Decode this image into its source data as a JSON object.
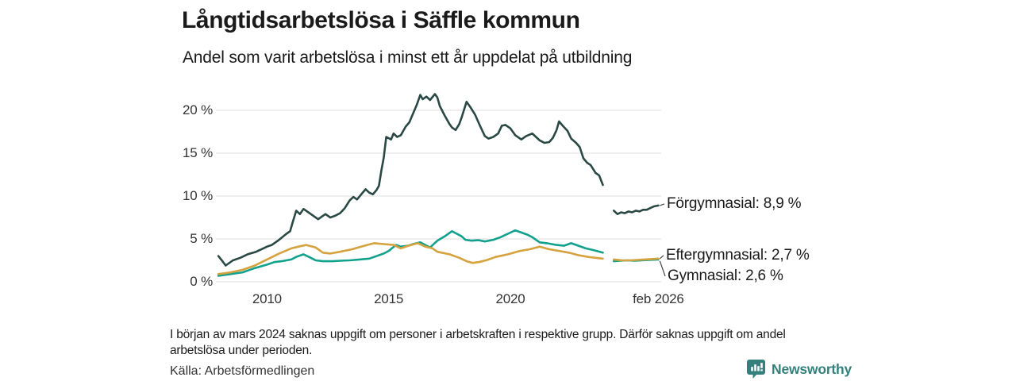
{
  "header": {
    "title": "Långtidsarbetslösa i Säffle kommun",
    "subtitle": "Andel som varit arbetslösa i minst ett år uppdelat på utbildning"
  },
  "footer": {
    "note": "I början av mars 2024 saknas uppgift om personer i arbetskraften i respektive grupp. Därför saknas uppgift om andel arbetslösa under perioden.",
    "source": "Källa: Arbetsförmedlingen",
    "brand": "Newsworthy",
    "brand_color": "#33807c"
  },
  "chart_data": {
    "type": "line",
    "title": "Långtidsarbetslösa i Säffle kommun",
    "subtitle": "Andel som varit arbetslösa i minst ett år uppdelat på utbildning",
    "unit": "%",
    "grid_color": "#dedede",
    "legend_position": "end-of-line-labels",
    "x_axis": {
      "range": [
        2007.9,
        2026.1
      ],
      "ticks": [
        {
          "value": 2010,
          "label": "2010"
        },
        {
          "value": 2015,
          "label": "2015"
        },
        {
          "value": 2020,
          "label": "2020"
        },
        {
          "value": 2026.08,
          "label": "feb 2026"
        }
      ]
    },
    "y_axis": {
      "range": [
        0,
        23
      ],
      "ticks": [
        {
          "value": 0,
          "label": "0 %"
        },
        {
          "value": 5,
          "label": "5 %"
        },
        {
          "value": 10,
          "label": "10 %"
        },
        {
          "value": 15,
          "label": "15 %"
        },
        {
          "value": 20,
          "label": "20 %"
        }
      ]
    },
    "data_gap": {
      "from": 2023.8,
      "to": 2024.25,
      "reason": "Uppgift saknas (se fotnot)"
    },
    "series": [
      {
        "key": "forgymnasial",
        "name": "Förgymnasial",
        "end_label": "Förgymnasial: 8,9 %",
        "end_value": 8.9,
        "color": "#2a4844",
        "points": [
          [
            2008.0,
            3.0
          ],
          [
            2008.17,
            2.4
          ],
          [
            2008.3,
            1.9
          ],
          [
            2008.6,
            2.5
          ],
          [
            2008.9,
            2.8
          ],
          [
            2009.2,
            3.2
          ],
          [
            2009.55,
            3.5
          ],
          [
            2009.85,
            3.9
          ],
          [
            2010.0,
            4.1
          ],
          [
            2010.2,
            4.3
          ],
          [
            2010.45,
            4.8
          ],
          [
            2010.8,
            5.6
          ],
          [
            2010.95,
            5.9
          ],
          [
            2011.05,
            6.9
          ],
          [
            2011.2,
            8.3
          ],
          [
            2011.35,
            7.9
          ],
          [
            2011.5,
            8.5
          ],
          [
            2011.65,
            8.2
          ],
          [
            2011.8,
            7.9
          ],
          [
            2012.1,
            7.3
          ],
          [
            2012.4,
            7.9
          ],
          [
            2012.6,
            7.5
          ],
          [
            2012.8,
            7.7
          ],
          [
            2013.0,
            8.0
          ],
          [
            2013.2,
            8.6
          ],
          [
            2013.4,
            9.5
          ],
          [
            2013.55,
            9.9
          ],
          [
            2013.7,
            9.6
          ],
          [
            2013.9,
            10.3
          ],
          [
            2014.05,
            10.8
          ],
          [
            2014.2,
            10.4
          ],
          [
            2014.35,
            10.2
          ],
          [
            2014.5,
            10.7
          ],
          [
            2014.6,
            11.2
          ],
          [
            2014.7,
            13.0
          ],
          [
            2014.8,
            14.5
          ],
          [
            2014.9,
            16.9
          ],
          [
            2015.1,
            16.6
          ],
          [
            2015.2,
            17.3
          ],
          [
            2015.35,
            16.9
          ],
          [
            2015.5,
            17.1
          ],
          [
            2015.7,
            18.1
          ],
          [
            2015.85,
            18.6
          ],
          [
            2016.0,
            19.6
          ],
          [
            2016.15,
            20.6
          ],
          [
            2016.3,
            21.8
          ],
          [
            2016.4,
            21.3
          ],
          [
            2016.55,
            21.6
          ],
          [
            2016.7,
            21.2
          ],
          [
            2016.9,
            21.9
          ],
          [
            2017.0,
            21.5
          ],
          [
            2017.1,
            20.5
          ],
          [
            2017.3,
            19.4
          ],
          [
            2017.5,
            18.4
          ],
          [
            2017.6,
            18.0
          ],
          [
            2017.75,
            17.7
          ],
          [
            2017.9,
            18.4
          ],
          [
            2018.0,
            19.2
          ],
          [
            2018.2,
            21.0
          ],
          [
            2018.35,
            20.4
          ],
          [
            2018.55,
            19.5
          ],
          [
            2018.75,
            18.2
          ],
          [
            2018.95,
            17.0
          ],
          [
            2019.1,
            16.7
          ],
          [
            2019.3,
            16.9
          ],
          [
            2019.5,
            17.3
          ],
          [
            2019.65,
            18.2
          ],
          [
            2019.8,
            18.3
          ],
          [
            2020.0,
            17.9
          ],
          [
            2020.2,
            17.1
          ],
          [
            2020.45,
            16.6
          ],
          [
            2020.65,
            17.0
          ],
          [
            2020.9,
            17.3
          ],
          [
            2021.05,
            16.9
          ],
          [
            2021.2,
            16.5
          ],
          [
            2021.4,
            16.2
          ],
          [
            2021.6,
            16.3
          ],
          [
            2021.75,
            16.8
          ],
          [
            2021.9,
            17.7
          ],
          [
            2022.0,
            18.7
          ],
          [
            2022.15,
            18.2
          ],
          [
            2022.35,
            17.6
          ],
          [
            2022.5,
            16.7
          ],
          [
            2022.7,
            16.2
          ],
          [
            2022.85,
            15.7
          ],
          [
            2023.0,
            14.4
          ],
          [
            2023.15,
            13.9
          ],
          [
            2023.3,
            13.6
          ],
          [
            2023.5,
            12.7
          ],
          [
            2023.65,
            12.4
          ],
          [
            2023.8,
            11.3
          ],
          [
            2024.0,
            null
          ],
          [
            2024.25,
            8.3
          ],
          [
            2024.4,
            7.9
          ],
          [
            2024.55,
            8.1
          ],
          [
            2024.7,
            8.0
          ],
          [
            2024.85,
            8.2
          ],
          [
            2025.0,
            8.1
          ],
          [
            2025.15,
            8.3
          ],
          [
            2025.3,
            8.2
          ],
          [
            2025.45,
            8.4
          ],
          [
            2025.6,
            8.4
          ],
          [
            2025.75,
            8.6
          ],
          [
            2025.9,
            8.8
          ],
          [
            2026.08,
            8.9
          ]
        ]
      },
      {
        "key": "eftergymnasial",
        "name": "Eftergymnasial",
        "end_label": "Eftergymnasial: 2,7 %",
        "end_value": 2.7,
        "color": "#d5a23d",
        "points": [
          [
            2008.0,
            0.9
          ],
          [
            2008.5,
            1.1
          ],
          [
            2009.0,
            1.4
          ],
          [
            2009.5,
            1.9
          ],
          [
            2010.0,
            2.6
          ],
          [
            2010.5,
            3.3
          ],
          [
            2011.0,
            3.9
          ],
          [
            2011.3,
            4.1
          ],
          [
            2011.6,
            4.3
          ],
          [
            2012.0,
            4.0
          ],
          [
            2012.3,
            3.4
          ],
          [
            2012.6,
            3.3
          ],
          [
            2013.0,
            3.5
          ],
          [
            2013.5,
            3.8
          ],
          [
            2014.0,
            4.2
          ],
          [
            2014.4,
            4.5
          ],
          [
            2014.8,
            4.4
          ],
          [
            2015.2,
            4.3
          ],
          [
            2015.5,
            3.9
          ],
          [
            2015.8,
            4.2
          ],
          [
            2016.2,
            4.5
          ],
          [
            2016.5,
            4.1
          ],
          [
            2016.8,
            3.9
          ],
          [
            2017.0,
            3.5
          ],
          [
            2017.5,
            3.2
          ],
          [
            2017.9,
            2.8
          ],
          [
            2018.2,
            2.4
          ],
          [
            2018.45,
            2.2
          ],
          [
            2018.7,
            2.3
          ],
          [
            2019.0,
            2.5
          ],
          [
            2019.4,
            2.9
          ],
          [
            2019.9,
            3.2
          ],
          [
            2020.4,
            3.6
          ],
          [
            2020.8,
            3.8
          ],
          [
            2021.2,
            4.1
          ],
          [
            2021.6,
            3.8
          ],
          [
            2022.0,
            3.6
          ],
          [
            2022.4,
            3.4
          ],
          [
            2022.8,
            3.1
          ],
          [
            2023.2,
            2.9
          ],
          [
            2023.5,
            2.8
          ],
          [
            2023.8,
            2.7
          ],
          [
            2024.0,
            null
          ],
          [
            2024.25,
            2.6
          ],
          [
            2024.6,
            2.5
          ],
          [
            2024.9,
            2.5
          ],
          [
            2025.2,
            2.55
          ],
          [
            2025.5,
            2.6
          ],
          [
            2025.8,
            2.65
          ],
          [
            2026.08,
            2.7
          ]
        ]
      },
      {
        "key": "gymnasial",
        "name": "Gymnasial",
        "end_label": "Gymnasial: 2,6 %",
        "end_value": 2.6,
        "color": "#12a18c",
        "points": [
          [
            2008.0,
            0.7
          ],
          [
            2008.5,
            0.9
          ],
          [
            2009.0,
            1.1
          ],
          [
            2009.5,
            1.6
          ],
          [
            2010.0,
            2.0
          ],
          [
            2010.3,
            2.3
          ],
          [
            2010.6,
            2.4
          ],
          [
            2011.0,
            2.6
          ],
          [
            2011.2,
            2.9
          ],
          [
            2011.5,
            3.2
          ],
          [
            2011.8,
            2.8
          ],
          [
            2012.0,
            2.5
          ],
          [
            2012.3,
            2.4
          ],
          [
            2012.7,
            2.4
          ],
          [
            2013.0,
            2.45
          ],
          [
            2013.4,
            2.5
          ],
          [
            2013.8,
            2.6
          ],
          [
            2014.2,
            2.7
          ],
          [
            2014.5,
            3.0
          ],
          [
            2014.8,
            3.3
          ],
          [
            2015.0,
            3.6
          ],
          [
            2015.3,
            4.3
          ],
          [
            2015.5,
            4.1
          ],
          [
            2015.8,
            4.2
          ],
          [
            2016.0,
            4.4
          ],
          [
            2016.3,
            4.6
          ],
          [
            2016.5,
            4.3
          ],
          [
            2016.7,
            4.0
          ],
          [
            2017.0,
            4.8
          ],
          [
            2017.3,
            5.3
          ],
          [
            2017.6,
            5.9
          ],
          [
            2017.8,
            5.6
          ],
          [
            2018.0,
            5.3
          ],
          [
            2018.15,
            4.9
          ],
          [
            2018.4,
            4.8
          ],
          [
            2018.7,
            4.85
          ],
          [
            2018.95,
            4.7
          ],
          [
            2019.3,
            4.9
          ],
          [
            2019.6,
            5.2
          ],
          [
            2019.9,
            5.6
          ],
          [
            2020.2,
            6.0
          ],
          [
            2020.4,
            5.8
          ],
          [
            2020.7,
            5.5
          ],
          [
            2020.9,
            5.2
          ],
          [
            2021.2,
            4.6
          ],
          [
            2021.5,
            4.5
          ],
          [
            2021.9,
            4.3
          ],
          [
            2022.2,
            4.2
          ],
          [
            2022.5,
            4.5
          ],
          [
            2022.8,
            4.2
          ],
          [
            2023.1,
            3.9
          ],
          [
            2023.4,
            3.7
          ],
          [
            2023.8,
            3.4
          ],
          [
            2024.0,
            null
          ],
          [
            2024.25,
            2.4
          ],
          [
            2024.5,
            2.45
          ],
          [
            2024.8,
            2.5
          ],
          [
            2025.1,
            2.45
          ],
          [
            2025.4,
            2.5
          ],
          [
            2025.7,
            2.55
          ],
          [
            2026.08,
            2.6
          ]
        ]
      }
    ]
  }
}
